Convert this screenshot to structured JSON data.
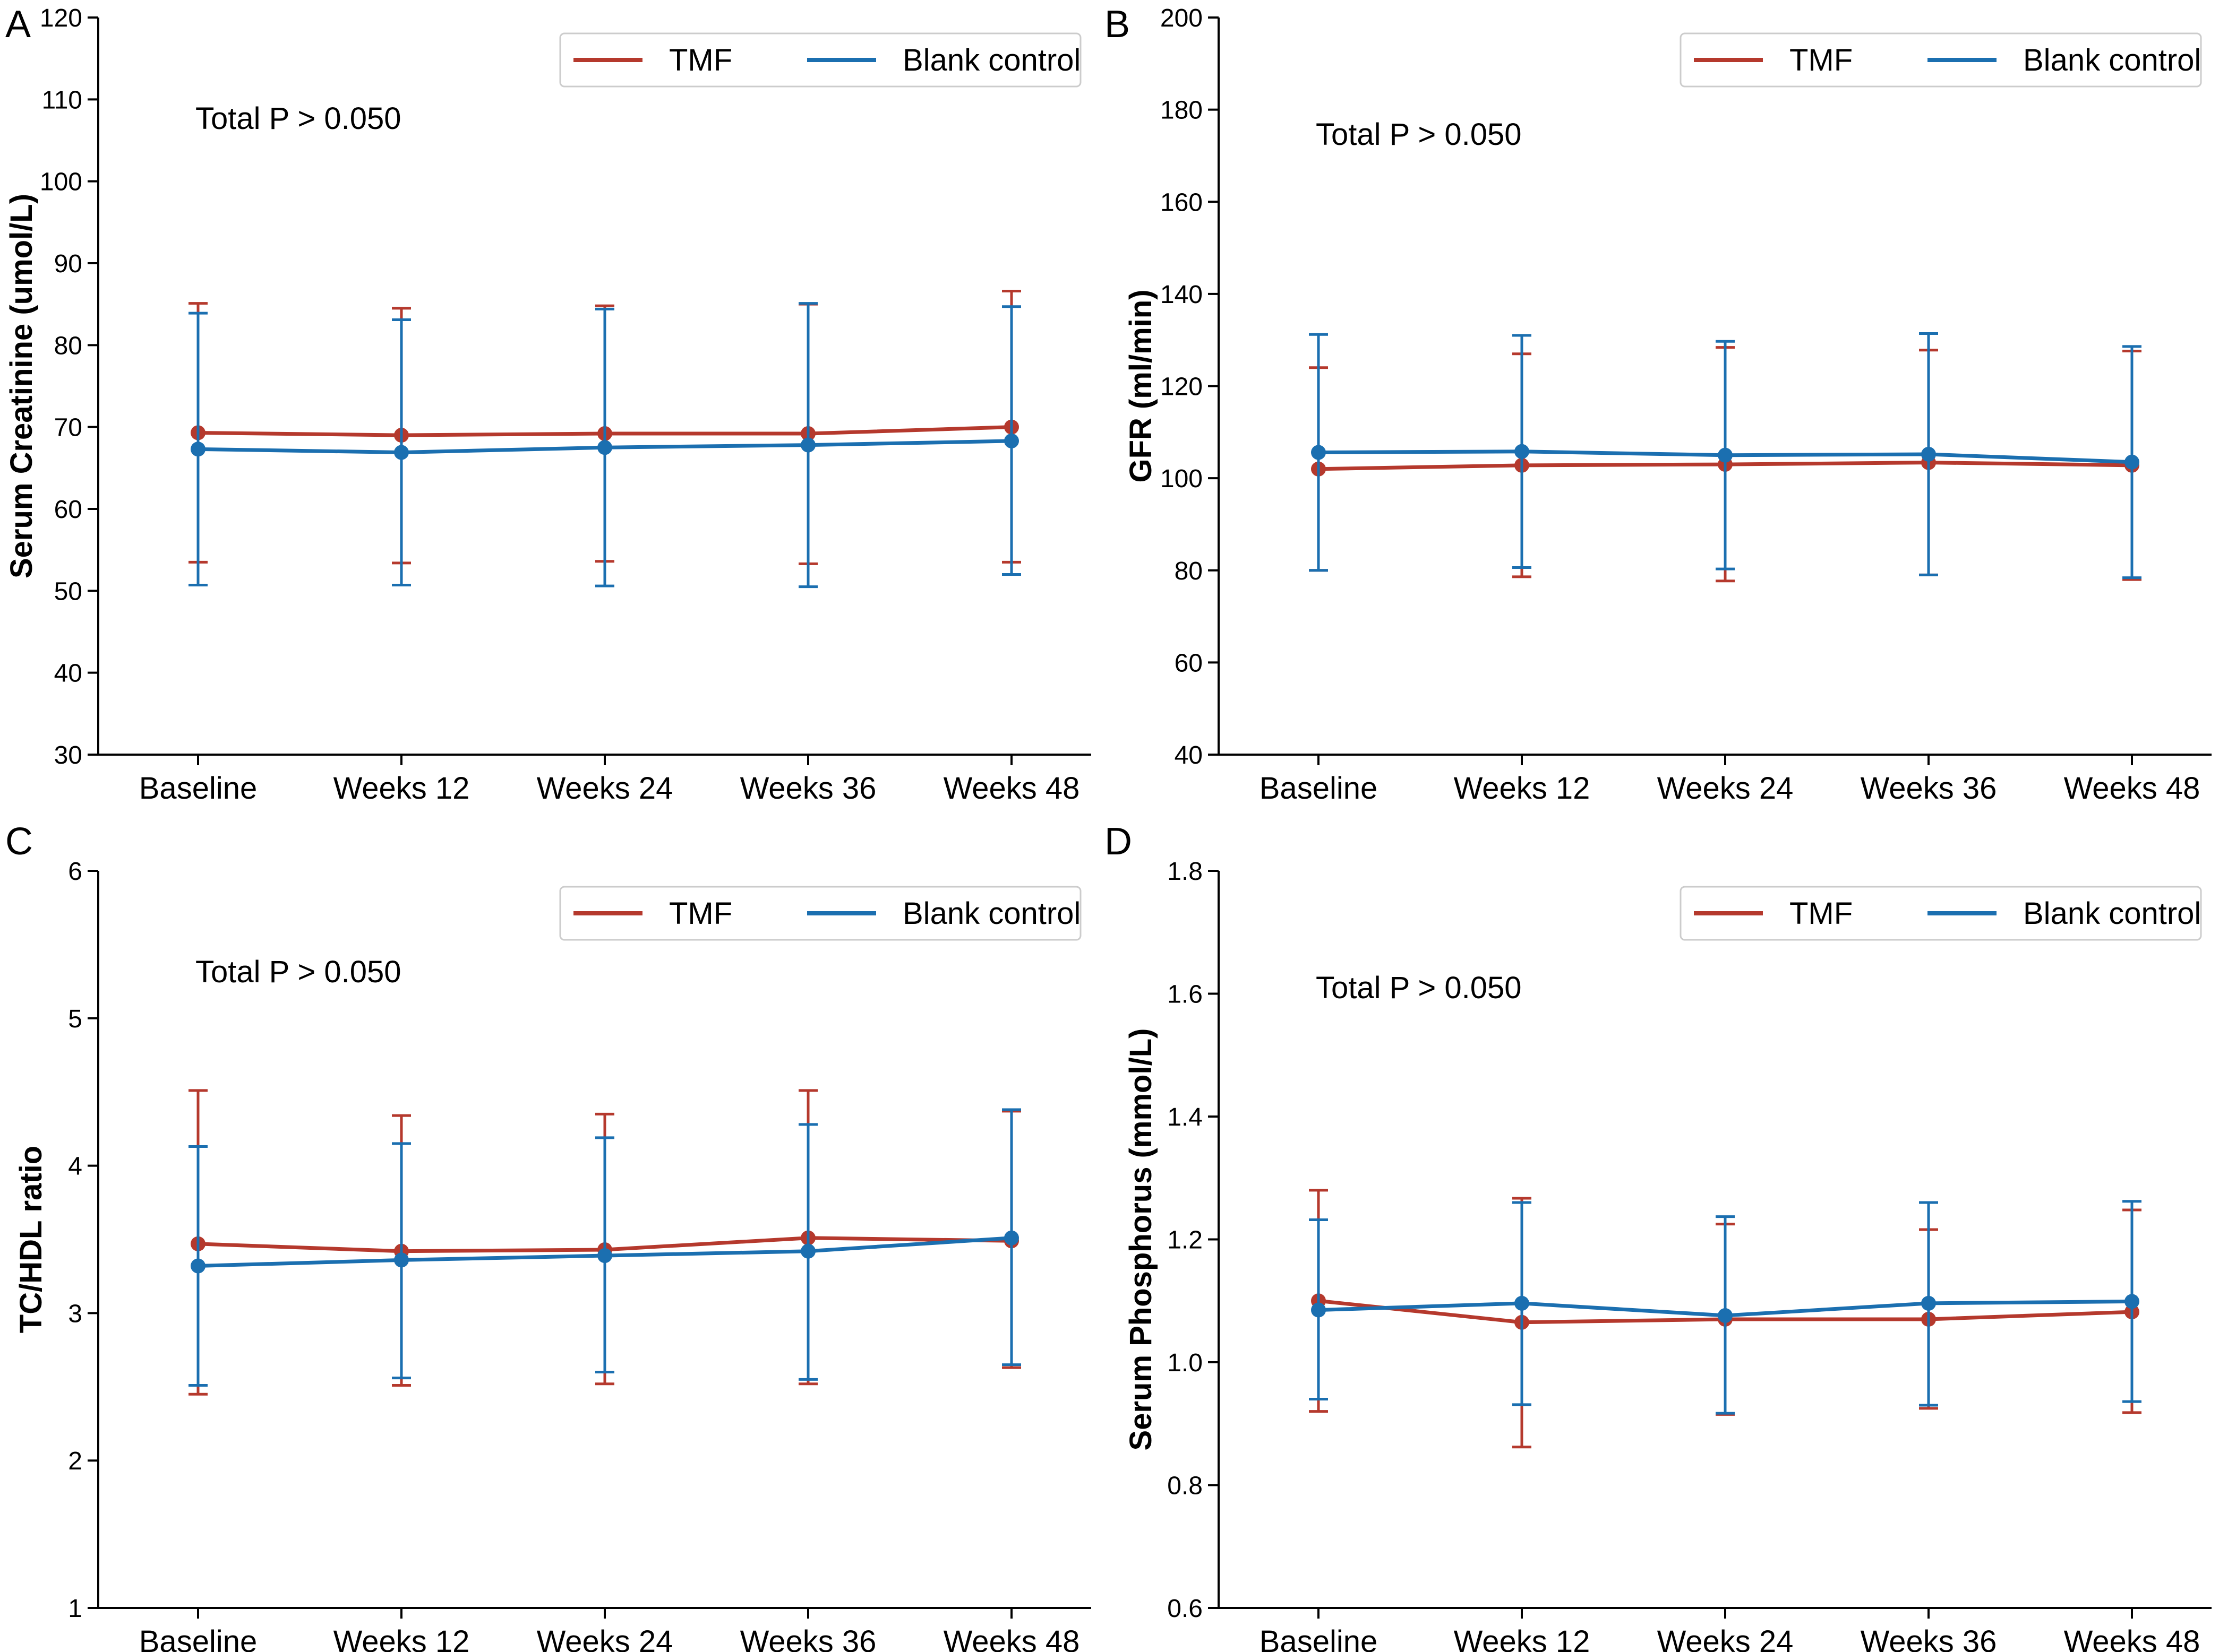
{
  "colors": {
    "tmf": "#B5392D",
    "blank": "#1B6FB0",
    "axis": "#000000"
  },
  "series_names": [
    "TMF",
    "Blank control"
  ],
  "chart_data": [
    {
      "panel": "A",
      "type": "line",
      "ylabel": "Serum Creatinine (umol/L)",
      "categories": [
        "Baseline",
        "Weeks 12",
        "Weeks 24",
        "Weeks 36",
        "Weeks 48"
      ],
      "ylim": [
        30,
        120
      ],
      "yticks": [
        "30",
        "40",
        "50",
        "60",
        "70",
        "80",
        "90",
        "100",
        "110",
        "120"
      ],
      "annotation": "Total P > 0.050",
      "legend": "top-right",
      "series": [
        {
          "name": "TMF",
          "values": [
            69.3,
            69.0,
            69.2,
            69.2,
            70.0
          ],
          "err_low": [
            53.5,
            53.4,
            53.6,
            53.3,
            53.5
          ],
          "err_high": [
            85.1,
            84.5,
            84.8,
            85.0,
            86.6
          ]
        },
        {
          "name": "Blank control",
          "values": [
            67.3,
            66.9,
            67.5,
            67.8,
            68.3
          ],
          "err_low": [
            50.7,
            50.7,
            50.6,
            50.5,
            52.0
          ],
          "err_high": [
            83.9,
            83.1,
            84.4,
            85.1,
            84.7
          ]
        }
      ]
    },
    {
      "panel": "B",
      "type": "line",
      "ylabel": "GFR (ml/min)",
      "categories": [
        "Baseline",
        "Weeks 12",
        "Weeks 24",
        "Weeks 36",
        "Weeks 48"
      ],
      "ylim": [
        40,
        200
      ],
      "yticks": [
        "40",
        "60",
        "80",
        "100",
        "120",
        "140",
        "160",
        "180",
        "200"
      ],
      "annotation": "Total P > 0.050",
      "legend": "top-right",
      "series": [
        {
          "name": "TMF",
          "values": [
            102.0,
            102.8,
            103.0,
            103.4,
            102.8
          ],
          "err_low": [
            80.0,
            78.6,
            77.7,
            79.0,
            78.0
          ],
          "err_high": [
            124.0,
            127.0,
            128.4,
            127.8,
            127.6
          ]
        },
        {
          "name": "Blank control",
          "values": [
            105.6,
            105.8,
            105.0,
            105.2,
            103.5
          ],
          "err_low": [
            80.0,
            80.6,
            80.3,
            79.0,
            78.4
          ],
          "err_high": [
            131.2,
            131.0,
            129.7,
            131.4,
            128.6
          ]
        }
      ]
    },
    {
      "panel": "C",
      "type": "line",
      "ylabel": "TC/HDL ratio",
      "categories": [
        "Baseline",
        "Weeks 12",
        "Weeks 24",
        "Weeks 36",
        "Weeks 48"
      ],
      "ylim": [
        1,
        6
      ],
      "yticks": [
        "1",
        "2",
        "3",
        "4",
        "5",
        "6"
      ],
      "annotation": "Total P > 0.050",
      "legend": "top-right",
      "series": [
        {
          "name": "TMF",
          "values": [
            3.47,
            3.42,
            3.43,
            3.51,
            3.49
          ],
          "err_low": [
            2.45,
            2.51,
            2.52,
            2.52,
            2.63
          ],
          "err_high": [
            4.51,
            4.34,
            4.35,
            4.51,
            4.37
          ]
        },
        {
          "name": "Blank control",
          "values": [
            3.32,
            3.36,
            3.39,
            3.42,
            3.51
          ],
          "err_low": [
            2.51,
            2.56,
            2.6,
            2.55,
            2.65
          ],
          "err_high": [
            4.13,
            4.15,
            4.19,
            4.28,
            4.38
          ]
        }
      ]
    },
    {
      "panel": "D",
      "type": "line",
      "ylabel": "Serum Phosphorus (mmol/L)",
      "categories": [
        "Baseline",
        "Weeks 12",
        "Weeks 24",
        "Weeks 36",
        "Weeks 48"
      ],
      "ylim": [
        0.6,
        1.8
      ],
      "yticks": [
        "0.6",
        "0.8",
        "1.0",
        "1.2",
        "1.4",
        "1.6",
        "1.8"
      ],
      "annotation": "Total P > 0.050",
      "legend": "top-right",
      "series": [
        {
          "name": "TMF",
          "values": [
            1.1,
            1.065,
            1.07,
            1.07,
            1.082
          ],
          "err_low": [
            0.92,
            0.862,
            0.915,
            0.925,
            0.918
          ],
          "err_high": [
            1.28,
            1.267,
            1.225,
            1.216,
            1.248
          ]
        },
        {
          "name": "Blank control",
          "values": [
            1.085,
            1.096,
            1.076,
            1.096,
            1.099
          ],
          "err_low": [
            0.94,
            0.931,
            0.917,
            0.93,
            0.936
          ],
          "err_high": [
            1.232,
            1.26,
            1.237,
            1.26,
            1.262
          ]
        }
      ]
    }
  ]
}
